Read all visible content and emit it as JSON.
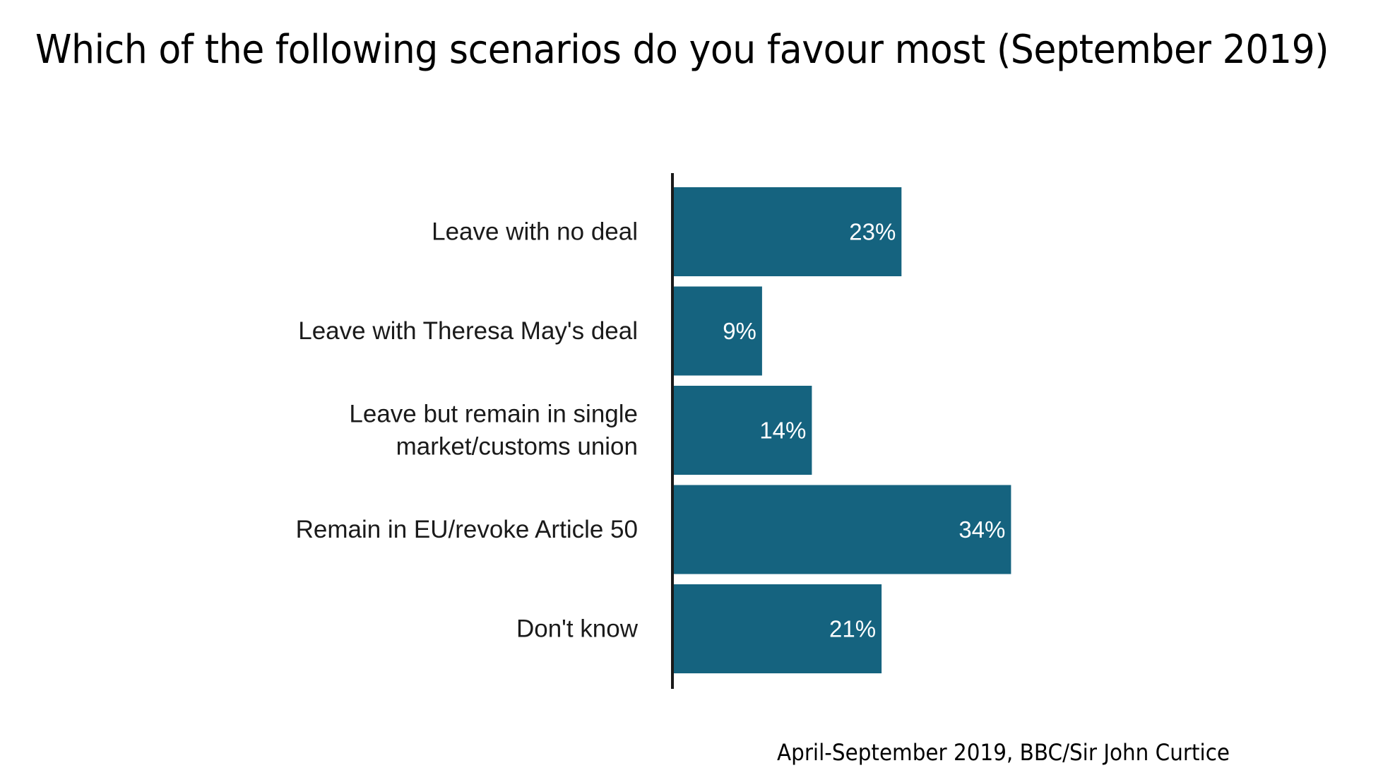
{
  "chart_data": {
    "type": "bar",
    "orientation": "horizontal",
    "title": "Which of the following scenarios do you favour most (September 2019)",
    "categories": [
      [
        "Leave with no deal"
      ],
      [
        "Leave with Theresa May's deal"
      ],
      [
        "Leave but remain in single",
        "market/customs union"
      ],
      [
        "Remain in EU/revoke Article 50"
      ],
      [
        "Don't know"
      ]
    ],
    "values": [
      23,
      9,
      14,
      34,
      21
    ],
    "value_labels": [
      "23%",
      "9%",
      "14%",
      "34%",
      "21%"
    ],
    "unit": "%",
    "xlabel": "",
    "ylabel": "",
    "grid": false,
    "legend": "none",
    "bar_color": "#15637f",
    "source": "April-September 2019, BBC/Sir John Curtice"
  }
}
